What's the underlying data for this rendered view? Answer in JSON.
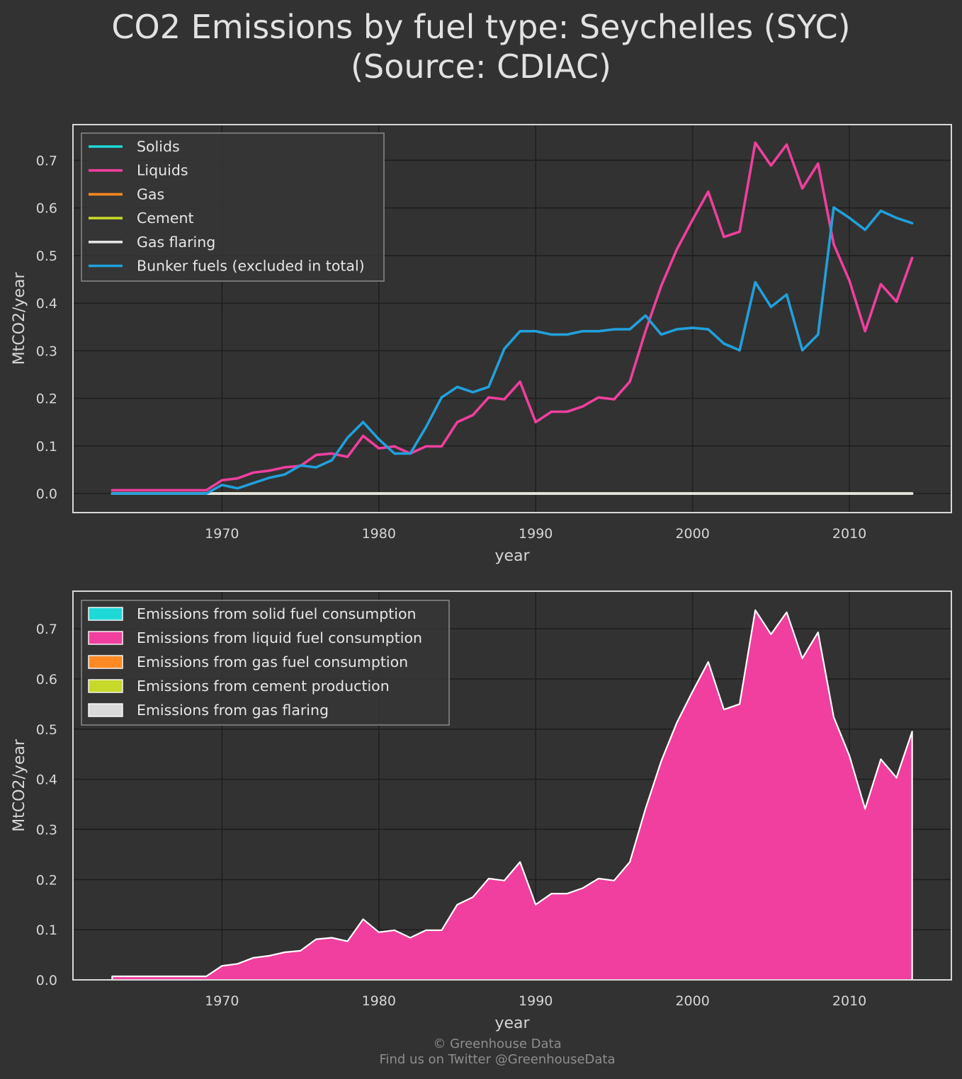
{
  "title": "CO2 Emissions by fuel type: Seychelles (SYC)\n(Source: CDIAC)",
  "footer": {
    "copyright": "© Greenhouse Data",
    "twitter": "Find us on Twitter @GreenhouseData"
  },
  "chart_data": [
    {
      "type": "line",
      "xlabel": "year",
      "ylabel": "MtCO2/year",
      "xlim": [
        1960.5,
        2016.5
      ],
      "ylim": [
        -0.04,
        0.775
      ],
      "xticks": [
        1970,
        1980,
        1990,
        2000,
        2010
      ],
      "yticks": [
        0.0,
        0.1,
        0.2,
        0.3,
        0.4,
        0.5,
        0.6,
        0.7
      ],
      "grid": true,
      "legend_position": "top-left",
      "x": [
        1963,
        1964,
        1965,
        1966,
        1967,
        1968,
        1969,
        1970,
        1971,
        1972,
        1973,
        1974,
        1975,
        1976,
        1977,
        1978,
        1979,
        1980,
        1981,
        1982,
        1983,
        1984,
        1985,
        1986,
        1987,
        1988,
        1989,
        1990,
        1991,
        1992,
        1993,
        1994,
        1995,
        1996,
        1997,
        1998,
        1999,
        2000,
        2001,
        2002,
        2003,
        2004,
        2005,
        2006,
        2007,
        2008,
        2009,
        2010,
        2011,
        2012,
        2013,
        2014
      ],
      "series": [
        {
          "name": "Solids",
          "color": "#1fd8d8",
          "values": [
            0,
            0,
            0,
            0,
            0,
            0,
            0,
            0,
            0,
            0,
            0,
            0,
            0,
            0,
            0,
            0,
            0,
            0,
            0,
            0,
            0,
            0,
            0,
            0,
            0,
            0,
            0,
            0,
            0,
            0,
            0,
            0,
            0,
            0,
            0,
            0,
            0,
            0,
            0,
            0,
            0,
            0,
            0,
            0,
            0,
            0,
            0,
            0,
            0,
            0,
            0,
            0
          ]
        },
        {
          "name": "Liquids",
          "color": "#f03f9e",
          "values": [
            0.007,
            0.007,
            0.007,
            0.007,
            0.007,
            0.007,
            0.007,
            0.028,
            0.032,
            0.044,
            0.048,
            0.055,
            0.058,
            0.081,
            0.084,
            0.077,
            0.121,
            0.095,
            0.099,
            0.084,
            0.099,
            0.099,
            0.15,
            0.165,
            0.202,
            0.198,
            0.235,
            0.15,
            0.172,
            0.172,
            0.183,
            0.202,
            0.198,
            0.235,
            0.341,
            0.436,
            0.513,
            0.575,
            0.634,
            0.539,
            0.55,
            0.737,
            0.689,
            0.733,
            0.641,
            0.693,
            0.524,
            0.447,
            0.341,
            0.44,
            0.403,
            0.495
          ]
        },
        {
          "name": "Gas",
          "color": "#ff8a24",
          "values": [
            0,
            0,
            0,
            0,
            0,
            0,
            0,
            0,
            0,
            0,
            0,
            0,
            0,
            0,
            0,
            0,
            0,
            0,
            0,
            0,
            0,
            0,
            0,
            0,
            0,
            0,
            0,
            0,
            0,
            0,
            0,
            0,
            0,
            0,
            0,
            0,
            0,
            0,
            0,
            0,
            0,
            0,
            0,
            0,
            0,
            0,
            0,
            0,
            0,
            0,
            0,
            0
          ]
        },
        {
          "name": "Cement",
          "color": "#c6d82a",
          "values": [
            0,
            0,
            0,
            0,
            0,
            0,
            0,
            0,
            0,
            0,
            0,
            0,
            0,
            0,
            0,
            0,
            0,
            0,
            0,
            0,
            0,
            0,
            0,
            0,
            0,
            0,
            0,
            0,
            0,
            0,
            0,
            0,
            0,
            0,
            0,
            0,
            0,
            0,
            0,
            0,
            0,
            0,
            0,
            0,
            0,
            0,
            0,
            0,
            0,
            0,
            0,
            0
          ]
        },
        {
          "name": "Gas flaring",
          "color": "#e4e4e4",
          "values": [
            0,
            0,
            0,
            0,
            0,
            0,
            0,
            0,
            0,
            0,
            0,
            0,
            0,
            0,
            0,
            0,
            0,
            0,
            0,
            0,
            0,
            0,
            0,
            0,
            0,
            0,
            0,
            0,
            0,
            0,
            0,
            0,
            0,
            0,
            0,
            0,
            0,
            0,
            0,
            0,
            0,
            0,
            0,
            0,
            0,
            0,
            0,
            0,
            0,
            0,
            0,
            0
          ]
        },
        {
          "name": "Bunker fuels (excluded in total)",
          "color": "#21a0dc",
          "values": [
            0,
            0,
            0,
            0,
            0,
            0,
            0,
            0.018,
            0.011,
            0.022,
            0.033,
            0.04,
            0.059,
            0.055,
            0.07,
            0.117,
            0.15,
            0.114,
            0.084,
            0.084,
            0.139,
            0.202,
            0.224,
            0.213,
            0.224,
            0.304,
            0.341,
            0.341,
            0.334,
            0.334,
            0.341,
            0.341,
            0.345,
            0.345,
            0.374,
            0.334,
            0.345,
            0.348,
            0.345,
            0.315,
            0.301,
            0.444,
            0.392,
            0.418,
            0.301,
            0.334,
            0.601,
            0.579,
            0.554,
            0.594,
            0.579,
            0.568
          ]
        }
      ]
    },
    {
      "type": "area",
      "xlabel": "year",
      "ylabel": "MtCO2/year",
      "xlim": [
        1960.5,
        2016.5
      ],
      "ylim": [
        0,
        0.775
      ],
      "xticks": [
        1970,
        1980,
        1990,
        2000,
        2010
      ],
      "yticks": [
        0.0,
        0.1,
        0.2,
        0.3,
        0.4,
        0.5,
        0.6,
        0.7
      ],
      "grid": true,
      "stacked": true,
      "legend_position": "top-left",
      "x": [
        1963,
        1964,
        1965,
        1966,
        1967,
        1968,
        1969,
        1970,
        1971,
        1972,
        1973,
        1974,
        1975,
        1976,
        1977,
        1978,
        1979,
        1980,
        1981,
        1982,
        1983,
        1984,
        1985,
        1986,
        1987,
        1988,
        1989,
        1990,
        1991,
        1992,
        1993,
        1994,
        1995,
        1996,
        1997,
        1998,
        1999,
        2000,
        2001,
        2002,
        2003,
        2004,
        2005,
        2006,
        2007,
        2008,
        2009,
        2010,
        2011,
        2012,
        2013,
        2014
      ],
      "series": [
        {
          "name": "Emissions from solid fuel consumption",
          "color": "#1fd8d8",
          "values": [
            0,
            0,
            0,
            0,
            0,
            0,
            0,
            0,
            0,
            0,
            0,
            0,
            0,
            0,
            0,
            0,
            0,
            0,
            0,
            0,
            0,
            0,
            0,
            0,
            0,
            0,
            0,
            0,
            0,
            0,
            0,
            0,
            0,
            0,
            0,
            0,
            0,
            0,
            0,
            0,
            0,
            0,
            0,
            0,
            0,
            0,
            0,
            0,
            0,
            0,
            0,
            0
          ]
        },
        {
          "name": "Emissions from liquid fuel consumption",
          "color": "#f03f9e",
          "values": [
            0.007,
            0.007,
            0.007,
            0.007,
            0.007,
            0.007,
            0.007,
            0.028,
            0.032,
            0.044,
            0.048,
            0.055,
            0.058,
            0.081,
            0.084,
            0.077,
            0.121,
            0.095,
            0.099,
            0.084,
            0.099,
            0.099,
            0.15,
            0.165,
            0.202,
            0.198,
            0.235,
            0.15,
            0.172,
            0.172,
            0.183,
            0.202,
            0.198,
            0.235,
            0.341,
            0.436,
            0.513,
            0.575,
            0.634,
            0.539,
            0.55,
            0.737,
            0.689,
            0.733,
            0.641,
            0.693,
            0.524,
            0.447,
            0.341,
            0.44,
            0.403,
            0.495
          ]
        },
        {
          "name": "Emissions from gas fuel consumption",
          "color": "#ff8a24",
          "values": [
            0,
            0,
            0,
            0,
            0,
            0,
            0,
            0,
            0,
            0,
            0,
            0,
            0,
            0,
            0,
            0,
            0,
            0,
            0,
            0,
            0,
            0,
            0,
            0,
            0,
            0,
            0,
            0,
            0,
            0,
            0,
            0,
            0,
            0,
            0,
            0,
            0,
            0,
            0,
            0,
            0,
            0,
            0,
            0,
            0,
            0,
            0,
            0,
            0,
            0,
            0,
            0
          ]
        },
        {
          "name": "Emissions from cement production",
          "color": "#c6d82a",
          "values": [
            0,
            0,
            0,
            0,
            0,
            0,
            0,
            0,
            0,
            0,
            0,
            0,
            0,
            0,
            0,
            0,
            0,
            0,
            0,
            0,
            0,
            0,
            0,
            0,
            0,
            0,
            0,
            0,
            0,
            0,
            0,
            0,
            0,
            0,
            0,
            0,
            0,
            0,
            0,
            0,
            0,
            0,
            0,
            0,
            0,
            0,
            0,
            0,
            0,
            0,
            0,
            0
          ]
        },
        {
          "name": "Emissions from gas flaring",
          "color": "#dadada",
          "values": [
            0,
            0,
            0,
            0,
            0,
            0,
            0,
            0,
            0,
            0,
            0,
            0,
            0,
            0,
            0,
            0,
            0,
            0,
            0,
            0,
            0,
            0,
            0,
            0,
            0,
            0,
            0,
            0,
            0,
            0,
            0,
            0,
            0,
            0,
            0,
            0,
            0,
            0,
            0,
            0,
            0,
            0,
            0,
            0,
            0,
            0,
            0,
            0,
            0,
            0,
            0,
            0
          ]
        }
      ]
    }
  ]
}
